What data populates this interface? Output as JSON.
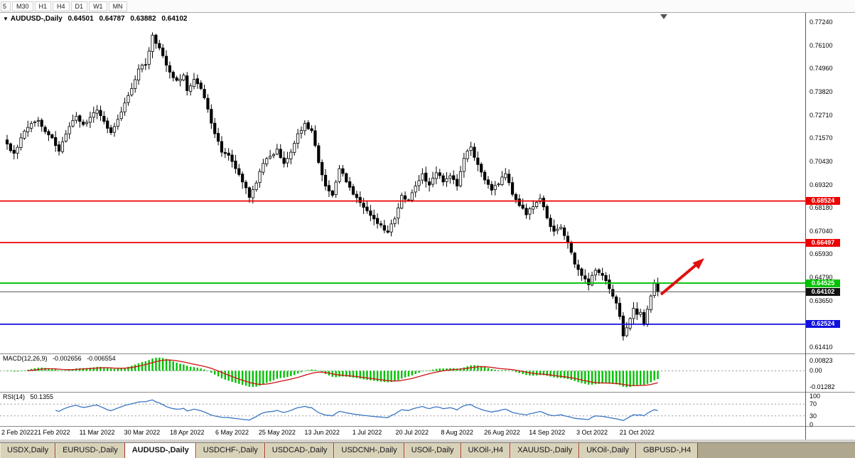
{
  "toolbar": {
    "partial_left": "5",
    "timeframes": [
      "M30",
      "H1",
      "H4",
      "D1",
      "W1",
      "MN"
    ]
  },
  "chart": {
    "collapse_icon": "▼",
    "title_symbol": "AUDUSD-,Daily",
    "ohlc": {
      "open": "0.64501",
      "high": "0.64787",
      "low": "0.63882",
      "close": "0.64102"
    },
    "axis_top_value": 0.7724,
    "axis_bottom_value": 0.6141,
    "price_axis": [
      "0.77240",
      "0.76100",
      "0.74960",
      "0.73820",
      "0.72710",
      "0.71570",
      "0.70430",
      "0.69320",
      "0.68180",
      "0.67040",
      "0.65930",
      "0.64790",
      "0.63650",
      "0.62540",
      "0.61410"
    ],
    "hlines": [
      {
        "name": "hline-resistance-upper",
        "price": 0.68524,
        "label": "0.68524",
        "color": "#ee0000"
      },
      {
        "name": "hline-resistance-lower",
        "price": 0.66497,
        "label": "0.66497",
        "color": "#ee0000"
      },
      {
        "name": "hline-pivot-green",
        "price": 0.64525,
        "label": "0.64525",
        "color": "#00c200"
      },
      {
        "name": "hline-support-blue",
        "price": 0.62524,
        "label": "0.62524",
        "color": "#1010e0"
      }
    ],
    "current_price": {
      "price": 0.64102,
      "label": "0.64102",
      "line_color": "#555555",
      "tag_bg": "#111111"
    },
    "arrow_color": "#e01010",
    "dates": [
      "2 Feb 2022",
      "21 Feb 2022",
      "11 Mar 2022",
      "30 Mar 2022",
      "18 Apr 2022",
      "6 May 2022",
      "25 May 2022",
      "13 Jun 2022",
      "1 Jul 2022",
      "20 Jul 2022",
      "8 Aug 2022",
      "26 Aug 2022",
      "14 Sep 2022",
      "3 Oct 2022",
      "21 Oct 2022"
    ]
  },
  "macd": {
    "label": "MACD(12,26,9)",
    "value_main": "-0.002656",
    "value_signal": "-0.006554",
    "axis": [
      "0.00823",
      "0.00",
      "-0.01282"
    ],
    "axis_top": 0.00823,
    "axis_bottom": -0.01282,
    "hist_color": "#00c000",
    "signal_color": "#cc1111"
  },
  "rsi": {
    "label": "RSI(14)",
    "value": "50.1355",
    "axis": [
      "100",
      "70",
      "30",
      "0"
    ],
    "levels": [
      70,
      30
    ],
    "line_color": "#3b76c4"
  },
  "tabs": [
    {
      "label": "USDX,Daily",
      "active": false
    },
    {
      "label": "EURUSD-,Daily",
      "active": false
    },
    {
      "label": "AUDUSD-,Daily",
      "active": true
    },
    {
      "label": "USDCHF-,Daily",
      "active": false
    },
    {
      "label": "USDCAD-,Daily",
      "active": false
    },
    {
      "label": "USDCNH-,Daily",
      "active": false
    },
    {
      "label": "USOil-,Daily",
      "active": false
    },
    {
      "label": "UKOil-,H4",
      "active": false
    },
    {
      "label": "XAUUSD-,Daily",
      "active": false
    },
    {
      "label": "UKOil-,Daily",
      "active": false
    },
    {
      "label": "GBPUSD-,H4",
      "active": false
    }
  ],
  "chart_data": {
    "type": "candlestick",
    "title": "AUDUSD-,Daily",
    "y_axis_range": [
      0.6141,
      0.7724
    ],
    "x_axis_dates": [
      "2 Feb 2022",
      "21 Feb 2022",
      "11 Mar 2022",
      "30 Mar 2022",
      "18 Apr 2022",
      "6 May 2022",
      "25 May 2022",
      "13 Jun 2022",
      "1 Jul 2022",
      "20 Jul 2022",
      "8 Aug 2022",
      "26 Aug 2022",
      "14 Sep 2022",
      "3 Oct 2022",
      "21 Oct 2022"
    ],
    "bars_total": 189,
    "last_bar": {
      "open": 0.64501,
      "high": 0.64787,
      "low": 0.63882,
      "close": 0.64102
    },
    "close_path_anchors": [
      [
        0,
        0.713
      ],
      [
        2,
        0.7085
      ],
      [
        4,
        0.716
      ],
      [
        7,
        0.723
      ],
      [
        9,
        0.7245
      ],
      [
        11,
        0.719
      ],
      [
        13,
        0.716
      ],
      [
        15,
        0.7095
      ],
      [
        16,
        0.714
      ],
      [
        18,
        0.7215
      ],
      [
        20,
        0.7265
      ],
      [
        22,
        0.7225
      ],
      [
        24,
        0.726
      ],
      [
        26,
        0.7295
      ],
      [
        28,
        0.724
      ],
      [
        30,
        0.7185
      ],
      [
        32,
        0.725
      ],
      [
        34,
        0.733
      ],
      [
        36,
        0.74
      ],
      [
        38,
        0.7495
      ],
      [
        40,
        0.7515
      ],
      [
        42,
        0.766
      ],
      [
        43,
        0.762
      ],
      [
        45,
        0.756
      ],
      [
        47,
        0.748
      ],
      [
        49,
        0.744
      ],
      [
        51,
        0.7465
      ],
      [
        52,
        0.739
      ],
      [
        54,
        0.7445
      ],
      [
        56,
        0.74
      ],
      [
        58,
        0.73
      ],
      [
        60,
        0.718
      ],
      [
        62,
        0.709
      ],
      [
        64,
        0.7075
      ],
      [
        66,
        0.701
      ],
      [
        68,
        0.6945
      ],
      [
        70,
        0.687
      ],
      [
        72,
        0.694
      ],
      [
        74,
        0.7035
      ],
      [
        76,
        0.707
      ],
      [
        78,
        0.7105
      ],
      [
        80,
        0.7035
      ],
      [
        82,
        0.709
      ],
      [
        84,
        0.718
      ],
      [
        86,
        0.723
      ],
      [
        88,
        0.7195
      ],
      [
        90,
        0.704
      ],
      [
        92,
        0.6925
      ],
      [
        94,
        0.688
      ],
      [
        96,
        0.701
      ],
      [
        98,
        0.6945
      ],
      [
        100,
        0.6885
      ],
      [
        102,
        0.6845
      ],
      [
        104,
        0.6805
      ],
      [
        106,
        0.6765
      ],
      [
        108,
        0.6735
      ],
      [
        110,
        0.67
      ],
      [
        112,
        0.6765
      ],
      [
        114,
        0.688
      ],
      [
        116,
        0.6855
      ],
      [
        118,
        0.6925
      ],
      [
        120,
        0.6985
      ],
      [
        122,
        0.693
      ],
      [
        124,
        0.699
      ],
      [
        126,
        0.6945
      ],
      [
        128,
        0.6975
      ],
      [
        130,
        0.6925
      ],
      [
        132,
        0.706
      ],
      [
        134,
        0.7115
      ],
      [
        136,
        0.703
      ],
      [
        138,
        0.6955
      ],
      [
        140,
        0.6905
      ],
      [
        142,
        0.6935
      ],
      [
        144,
        0.6985
      ],
      [
        146,
        0.6885
      ],
      [
        148,
        0.683
      ],
      [
        150,
        0.6785
      ],
      [
        152,
        0.6825
      ],
      [
        154,
        0.6865
      ],
      [
        156,
        0.677
      ],
      [
        158,
        0.6705
      ],
      [
        160,
        0.6725
      ],
      [
        162,
        0.665
      ],
      [
        164,
        0.6545
      ],
      [
        166,
        0.649
      ],
      [
        168,
        0.6445
      ],
      [
        170,
        0.6515
      ],
      [
        172,
        0.649
      ],
      [
        174,
        0.6425
      ],
      [
        176,
        0.6355
      ],
      [
        177,
        0.629
      ],
      [
        178,
        0.6195
      ],
      [
        179,
        0.6235
      ],
      [
        180,
        0.628
      ],
      [
        181,
        0.633
      ],
      [
        182,
        0.63
      ],
      [
        183,
        0.631
      ],
      [
        184,
        0.625
      ],
      [
        185,
        0.6325
      ],
      [
        186,
        0.639
      ],
      [
        187,
        0.645
      ],
      [
        188,
        0.641
      ]
    ],
    "horizontal_lines": [
      {
        "price": 0.68524,
        "color": "red",
        "role": "resistance"
      },
      {
        "price": 0.66497,
        "color": "red",
        "role": "resistance"
      },
      {
        "price": 0.64525,
        "color": "green",
        "role": "pivot"
      },
      {
        "price": 0.62524,
        "color": "blue",
        "role": "support"
      }
    ],
    "annotations": [
      {
        "type": "arrow",
        "direction": "up-right",
        "color": "red",
        "from_price": 0.641,
        "to_price": 0.657,
        "at_right_edge": true
      }
    ],
    "indicators": [
      {
        "type": "MACD",
        "params": [
          12,
          26,
          9
        ],
        "current_macd": -0.002656,
        "current_signal": -0.006554,
        "axis_ticks": [
          0.00823,
          0.0,
          -0.01282
        ]
      },
      {
        "type": "RSI",
        "params": [
          14
        ],
        "current": 50.1355,
        "levels": [
          30,
          70
        ],
        "scale": [
          0,
          100
        ]
      }
    ]
  }
}
